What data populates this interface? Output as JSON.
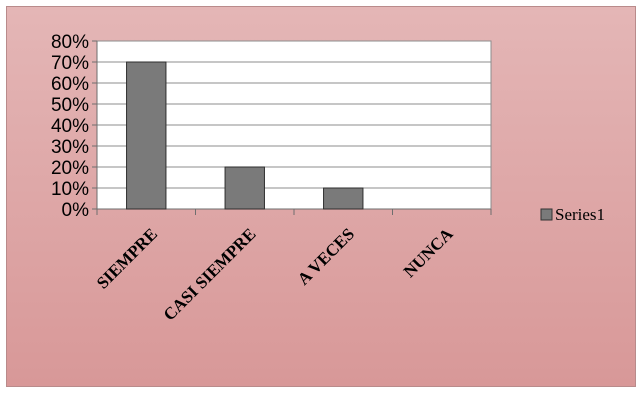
{
  "chart_data": {
    "type": "bar",
    "categories": [
      "SIEMPRE",
      "CASI SIEMPRE",
      "A VECES",
      "NUNCA"
    ],
    "series": [
      {
        "name": "Series1",
        "values": [
          0.7,
          0.2,
          0.1,
          0.0
        ],
        "color": "#7a7a7a"
      }
    ],
    "title": "",
    "xlabel": "",
    "ylabel": "",
    "ylim": [
      0,
      0.8
    ],
    "yticks": [
      "0%",
      "10%",
      "20%",
      "30%",
      "40%",
      "50%",
      "60%",
      "70%",
      "80%"
    ],
    "grid": true,
    "legend_position": "right"
  },
  "colors": {
    "background_top": "#e4b6b6",
    "background_bottom": "#d89898",
    "plot_area": "#ffffff",
    "bar_fill": "#7a7a7a",
    "gridline": "#8c8c8c"
  }
}
